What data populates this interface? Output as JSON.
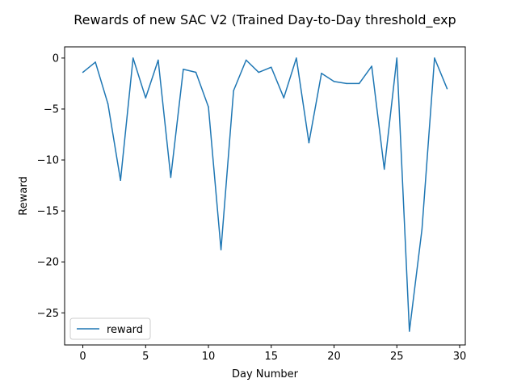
{
  "chart_data": {
    "type": "line",
    "title": "Rewards of new SAC V2 (Trained Day-to-Day threshold_exp",
    "xlabel": "Day Number",
    "ylabel": "Reward",
    "xlim": [
      -1.45,
      30.45
    ],
    "ylim": [
      -28.15,
      1.1
    ],
    "xticks": [
      0,
      5,
      10,
      15,
      20,
      25,
      30
    ],
    "yticks": [
      0,
      -5,
      -10,
      -15,
      -20,
      -25
    ],
    "grid": false,
    "legend_position": "lower-left",
    "series": [
      {
        "name": "reward",
        "color": "#1f77b4",
        "x": [
          0,
          1,
          2,
          3,
          4,
          5,
          6,
          7,
          8,
          9,
          10,
          11,
          12,
          13,
          14,
          15,
          16,
          17,
          18,
          19,
          20,
          21,
          22,
          23,
          24,
          25,
          26,
          27,
          28,
          29
        ],
        "y": [
          -1.4,
          -0.4,
          -4.5,
          -12.0,
          0.0,
          -3.9,
          -0.2,
          -11.7,
          -1.1,
          -1.4,
          -4.8,
          -18.8,
          -3.2,
          -0.2,
          -1.4,
          -0.9,
          -3.9,
          0.0,
          -8.3,
          -1.5,
          -2.3,
          -2.5,
          -2.5,
          -0.8,
          -10.9,
          0.0,
          -26.8,
          -16.8,
          0.0,
          -3.0
        ]
      }
    ]
  }
}
